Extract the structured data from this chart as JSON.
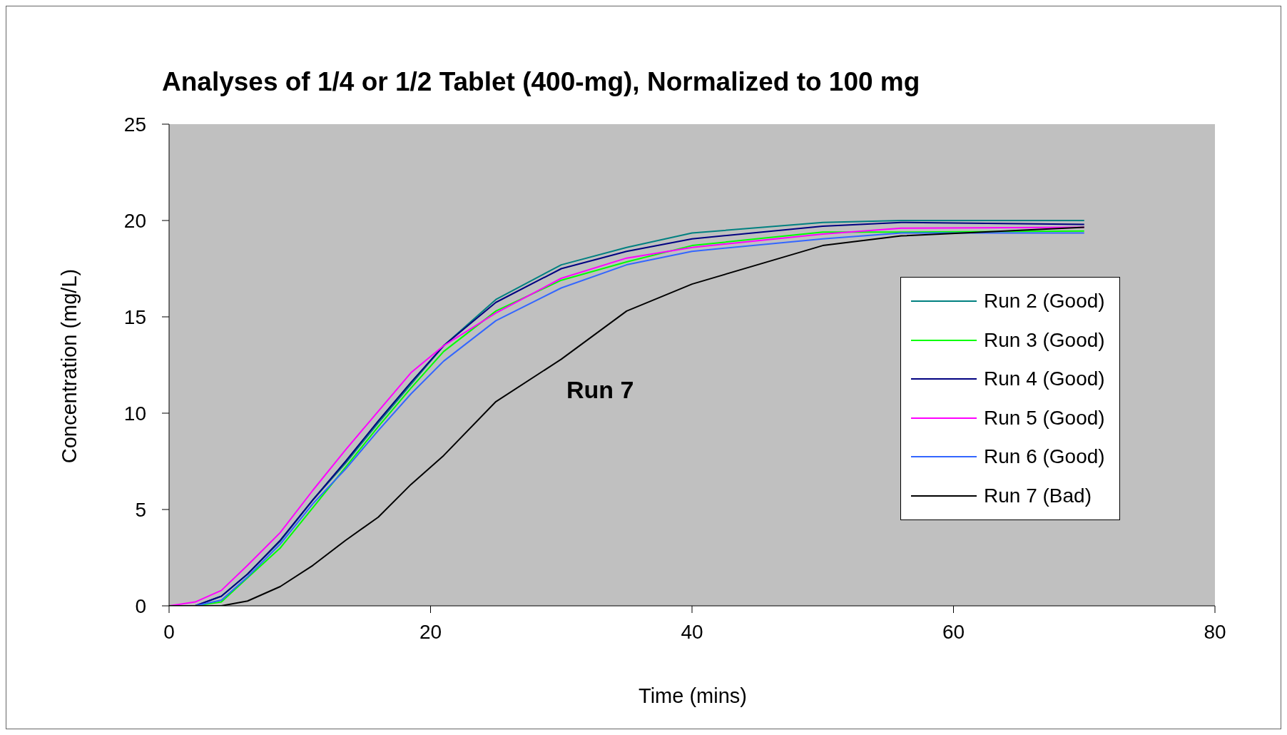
{
  "chart_data": {
    "type": "line",
    "title": "Analyses of 1/4 or 1/2 Tablet (400-mg), Normalized to 100 mg",
    "xlabel": "Time (mins)",
    "ylabel": "Concentration (mg/L)",
    "x": [
      0,
      2,
      4,
      6,
      8.5,
      11,
      13.5,
      16,
      18.5,
      21,
      25,
      30,
      35,
      40,
      50,
      56,
      70
    ],
    "series": [
      {
        "name": "Run 2 (Good)",
        "color": "#008080",
        "values": [
          0,
          0,
          0.5,
          1.65,
          3.35,
          5.5,
          7.4,
          9.5,
          11.5,
          13.5,
          15.9,
          17.7,
          18.6,
          19.35,
          19.9,
          20.0,
          20.0
        ]
      },
      {
        "name": "Run 3 (Good)",
        "color": "#00ff00",
        "values": [
          0,
          0,
          0.2,
          1.45,
          3.0,
          5.1,
          7.2,
          9.3,
          11.3,
          13.2,
          15.3,
          16.9,
          17.85,
          18.7,
          19.4,
          19.4,
          19.45
        ]
      },
      {
        "name": "Run 4 (Good)",
        "color": "#000080",
        "values": [
          0,
          0,
          0.5,
          1.65,
          3.4,
          5.5,
          7.5,
          9.6,
          11.6,
          13.5,
          15.75,
          17.5,
          18.4,
          19.05,
          19.7,
          19.9,
          19.8
        ]
      },
      {
        "name": "Run 5 (Good)",
        "color": "#ff00ff",
        "values": [
          0,
          0.2,
          0.8,
          2.1,
          3.8,
          6.0,
          8.1,
          10.1,
          12.1,
          13.5,
          15.2,
          17.0,
          18.05,
          18.6,
          19.3,
          19.6,
          19.65
        ]
      },
      {
        "name": "Run 6 (Good)",
        "color": "#3366ff",
        "values": [
          0,
          0,
          0.3,
          1.5,
          3.2,
          5.3,
          7.1,
          9.1,
          11.0,
          12.7,
          14.8,
          16.5,
          17.7,
          18.4,
          19.05,
          19.35,
          19.35
        ]
      },
      {
        "name": "Run 7 (Bad)",
        "color": "#000000",
        "values": [
          0,
          0,
          0,
          0.25,
          1.0,
          2.1,
          3.4,
          4.6,
          6.3,
          7.8,
          10.6,
          12.8,
          15.3,
          16.7,
          18.7,
          19.2,
          19.65
        ]
      }
    ],
    "annotations": [
      "Run 7"
    ],
    "xlim": [
      0,
      80
    ],
    "xticks": [
      0,
      20,
      40,
      60,
      80
    ],
    "ylim": [
      0,
      25
    ],
    "yticks": [
      0,
      5,
      10,
      15,
      20,
      25
    ],
    "legend": "right",
    "marker": "none",
    "line_style": "solid"
  }
}
